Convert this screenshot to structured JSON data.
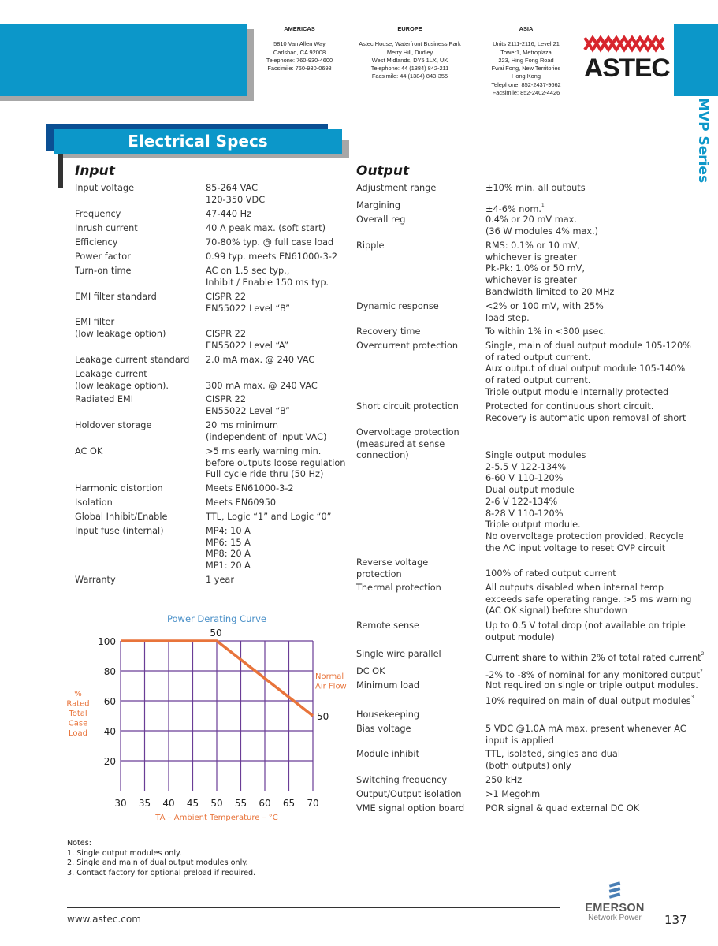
{
  "header": {
    "offices": [
      {
        "region": "AMERICAS",
        "address": "5810 Van Allen Way\nCarlsbad, CA 92008\nTelephone: 760-930-4600\nFacsimile: 760-930-0698"
      },
      {
        "region": "EUROPE",
        "address": "Astec House, Waterfront Business Park\nMerry Hill, Dudley\nWest Midlands, DY5 1LX, UK\nTelephone: 44 (1384) 842-211\nFacsimile: 44 (1384) 843-355"
      },
      {
        "region": "ASIA",
        "address": "Units 2111-2116, Level 21\nTower1, Metroplaza\n223, Hing Fong Road\nFwai Fong, New Territories\nHong Kong\nTelephone: 852-2437-9662\nFacsimile: 852-2402-4426"
      }
    ],
    "logo_text": "ASTEC",
    "series_tab": "MVP Series",
    "colors": {
      "brand_blue": "#0c97c9",
      "dark_blue": "#0b4f93",
      "logo_red": "#d7252d",
      "curve": "#e8743b",
      "grid": "#6a3d96"
    }
  },
  "title": "Electrical Specs",
  "input": {
    "heading": "Input",
    "rows": [
      {
        "label": "Input voltage",
        "value": "85-264 VAC\n120-350 VDC"
      },
      {
        "label": "Frequency",
        "value": "47-440 Hz"
      },
      {
        "label": "Inrush current",
        "value": "40 A peak max. (soft start)"
      },
      {
        "label": "Efficiency",
        "value": "70-80% typ. @ full case load"
      },
      {
        "label": "Power factor",
        "value": "0.99 typ. meets EN61000-3-2"
      },
      {
        "label": "Turn-on time",
        "value": "AC on 1.5 sec typ.,\nInhibit / Enable 150 ms typ."
      },
      {
        "label": "EMI filter standard",
        "value": "CISPR 22\nEN55022 Level “B”"
      },
      {
        "label": "EMI filter\n(low  leakage option)",
        "value": "CISPR 22\nEN55022 Level “A”"
      },
      {
        "label": "Leakage current standard",
        "value": "2.0 mA max. @ 240 VAC"
      },
      {
        "label": "Leakage current\n(low leakage option).",
        "value": "300 mA max. @ 240 VAC"
      },
      {
        "label": "Radiated EMI",
        "value": "CISPR 22\nEN55022 Level “B”"
      },
      {
        "label": "Holdover storage",
        "value": "20 ms minimum\n(independent of input VAC)"
      },
      {
        "label": "AC OK",
        "value": ">5 ms early warning min.\nbefore outputs loose regulation\nFull cycle ride thru (50 Hz)"
      },
      {
        "label": "Harmonic distortion",
        "value": "Meets EN61000-3-2"
      },
      {
        "label": "Isolation",
        "value": "Meets EN60950"
      },
      {
        "label": "Global Inhibit/Enable",
        "value": "TTL, Logic “1” and Logic “0”"
      },
      {
        "label": "Input fuse (internal)",
        "value": "MP4: 10 A\nMP6: 15 A\nMP8: 20 A\nMP1: 20 A"
      },
      {
        "label": "Warranty",
        "value": "1 year"
      }
    ]
  },
  "output": {
    "heading": "Output",
    "rows": [
      {
        "label": "Adjustment range",
        "value": "±10% min. all outputs"
      },
      {
        "label": "Margining",
        "value": "±4-6% nom.",
        "sup": "1"
      },
      {
        "label": "Overall reg",
        "value": "0.4% or 20 mV max.\n(36 W modules 4% max.)"
      },
      {
        "label": "Ripple",
        "value": "RMS: 0.1% or 10 mV,\nwhichever is greater\nPk-Pk: 1.0% or 50 mV,\nwhichever is greater\nBandwidth limited to 20 MHz"
      },
      {
        "label": "Dynamic response",
        "value": "<2% or 100 mV, with 25%\nload step."
      },
      {
        "label": "Recovery time",
        "value": "To within 1% in <300 µsec."
      },
      {
        "label": "Overcurrent protection",
        "value": "Single, main of dual output module 105-120%\nof rated output current.\nAux output of dual output module 105-140%\nof rated output current.\nTriple output module Internally protected"
      },
      {
        "label": "Short circuit protection",
        "value": "Protected for continuous short circuit.\nRecovery is automatic upon removal of short"
      },
      {
        "label": "Overvoltage protection\n(measured at sense\nconnection)",
        "value": "Single output modules\n2-5.5 V  122-134%\n6-60 V  110-120%\nDual output module\n2-6 V  122-134%\n8-28 V  110-120%\nTriple output module.\nNo overvoltage protection provided. Recycle\nthe AC input voltage to reset OVP circuit"
      },
      {
        "label": "Reverse voltage\nprotection",
        "value": "100% of rated output current"
      },
      {
        "label": "Thermal protection",
        "value": "All outputs disabled when internal temp\nexceeds safe operating range. >5 ms warning\n(AC OK signal) before shutdown"
      },
      {
        "label": "Remote sense",
        "value": "Up to 0.5 V total drop (not available on triple\noutput module)"
      },
      {
        "label": "Single wire parallel",
        "value": "Current share to within 2% of total rated current",
        "sup": "2"
      },
      {
        "label": "DC OK",
        "value": "-2% to -8% of nominal for any monitored output",
        "sup": "2"
      },
      {
        "label": "Minimum load",
        "value": "Not required on single or triple output modules.\n10% required on main of dual output modules",
        "sup": "3"
      },
      {
        "label": "Housekeeping",
        "value": ""
      },
      {
        "label": "Bias voltage",
        "value": "5 VDC @1.0A mA max. present whenever AC\ninput is applied"
      },
      {
        "label": "Module inhibit",
        "value": "TTL, isolated, singles and dual\n(both outputs) only"
      },
      {
        "label": "Switching frequency",
        "value": "250 kHz"
      },
      {
        "label": "Output/Output isolation",
        "value": ">1 Megohm"
      },
      {
        "label": "VME signal option board",
        "value": "POR signal & quad external DC OK"
      }
    ]
  },
  "chart_data": {
    "type": "line",
    "title": "Power Derating Curve",
    "xlabel": "TA – Ambient Temperature – °C",
    "ylabel": "%\nRated\nTotal\nCase\nLoad",
    "x_ticks": [
      30,
      35,
      40,
      45,
      50,
      55,
      60,
      65,
      70
    ],
    "y_ticks": [
      20,
      40,
      60,
      80,
      100
    ],
    "xlim": [
      30,
      70
    ],
    "ylim": [
      0,
      100
    ],
    "grid": true,
    "series": [
      {
        "name": "Normal\nAir Flow",
        "x": [
          30,
          50,
          70
        ],
        "y": [
          100,
          100,
          50
        ]
      }
    ],
    "annotations": [
      "50",
      "50"
    ]
  },
  "notes": {
    "heading": "Notes:",
    "items": [
      "1. Single output modules only.",
      "2. Single and main of dual output modules only.",
      "3. Contact factory for optional preload if required."
    ]
  },
  "footer": {
    "url": "www.astec.com",
    "brand": "EMERSON",
    "brand_sub": "Network Power",
    "page": "137"
  }
}
